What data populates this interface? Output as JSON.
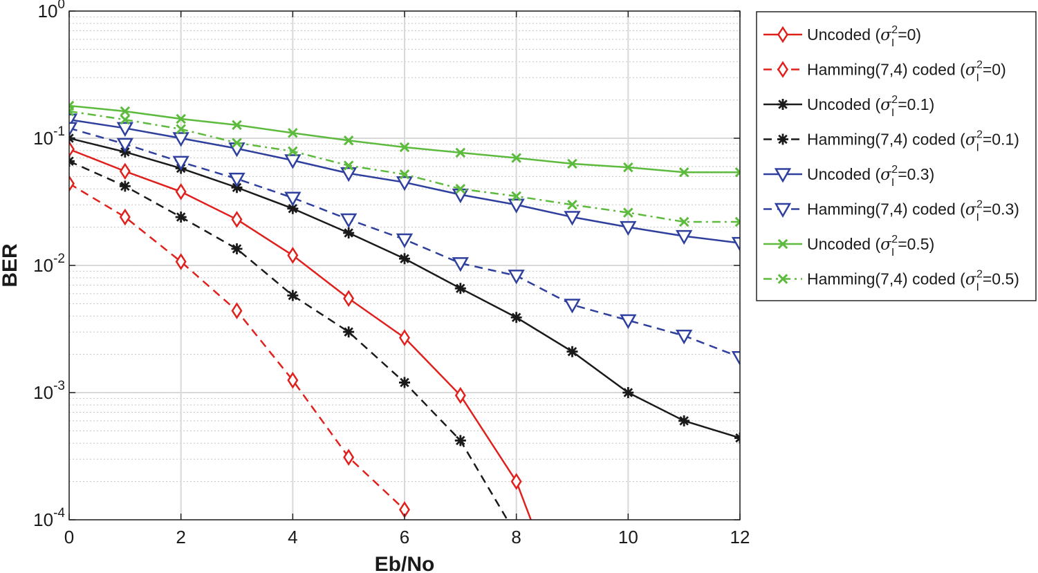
{
  "chart_data": {
    "type": "line",
    "title": "",
    "xlabel": "Eb/No",
    "ylabel": "BER",
    "xlim": [
      0,
      12
    ],
    "ylim": [
      0.0001,
      1
    ],
    "yscale": "log",
    "grid": true,
    "legend_position": "outside-right",
    "x_ticks": [
      0,
      2,
      4,
      6,
      8,
      10,
      12
    ],
    "y_ticks": [
      {
        "value": 0.0001,
        "base": "10",
        "exp": "-4"
      },
      {
        "value": 0.001,
        "base": "10",
        "exp": "-3"
      },
      {
        "value": 0.01,
        "base": "10",
        "exp": "-2"
      },
      {
        "value": 0.1,
        "base": "10",
        "exp": "-1"
      },
      {
        "value": 1,
        "base": "10",
        "exp": "0"
      }
    ],
    "series": [
      {
        "prefix": "Uncoded (",
        "value_text": "=0)",
        "color": "#e0201c",
        "dash": "solid",
        "marker": "diamond",
        "x": [
          0,
          1,
          2,
          3,
          4,
          5,
          6,
          7,
          8,
          8.3
        ],
        "y": [
          0.082,
          0.055,
          0.038,
          0.023,
          0.012,
          0.0055,
          0.0027,
          0.00095,
          0.0002,
          9e-05
        ]
      },
      {
        "prefix": "Hamming(7,4) coded (",
        "value_text": "=0)",
        "color": "#e0201c",
        "dash": "dashed",
        "marker": "diamond",
        "x": [
          0,
          1,
          2,
          3,
          4,
          5,
          6
        ],
        "y": [
          0.044,
          0.024,
          0.0107,
          0.0044,
          0.00125,
          0.00031,
          0.00012
        ]
      },
      {
        "prefix": "Uncoded (",
        "value_text": "=0.1)",
        "color": "#1a1a1a",
        "dash": "solid",
        "marker": "asterisk",
        "x": [
          0,
          1,
          2,
          3,
          4,
          5,
          6,
          7,
          8,
          9,
          10,
          11,
          12
        ],
        "y": [
          0.1,
          0.078,
          0.058,
          0.041,
          0.028,
          0.018,
          0.0113,
          0.0066,
          0.0039,
          0.0021,
          0.001,
          0.0006,
          0.00044
        ]
      },
      {
        "prefix": "Hamming(7,4) coded (",
        "value_text": "=0.1)",
        "color": "#1a1a1a",
        "dash": "dashed",
        "marker": "asterisk",
        "x": [
          0,
          1,
          2,
          3,
          4,
          5,
          6,
          7,
          7.9
        ],
        "y": [
          0.066,
          0.042,
          0.024,
          0.0135,
          0.0058,
          0.003,
          0.0012,
          0.00042,
          9e-05
        ]
      },
      {
        "prefix": "Uncoded (",
        "value_text": "=0.3)",
        "color": "#2e3f9e",
        "dash": "solid",
        "marker": "triangle-down",
        "x": [
          0,
          1,
          2,
          3,
          4,
          5,
          6,
          7,
          8,
          9,
          10,
          11,
          12
        ],
        "y": [
          0.14,
          0.12,
          0.1,
          0.083,
          0.067,
          0.053,
          0.045,
          0.036,
          0.03,
          0.024,
          0.02,
          0.017,
          0.015
        ]
      },
      {
        "prefix": "Hamming(7,4) coded (",
        "value_text": "=0.3)",
        "color": "#2e3f9e",
        "dash": "dashed",
        "marker": "triangle-down",
        "x": [
          0,
          1,
          2,
          3,
          4,
          5,
          6,
          7,
          8,
          9,
          10,
          11,
          12
        ],
        "y": [
          0.12,
          0.09,
          0.065,
          0.048,
          0.034,
          0.023,
          0.016,
          0.0104,
          0.0083,
          0.0049,
          0.0037,
          0.0028,
          0.0019
        ]
      },
      {
        "prefix": "Uncoded (",
        "value_text": "=0.5)",
        "color": "#5cba3c",
        "dash": "solid",
        "marker": "x",
        "x": [
          0,
          1,
          2,
          3,
          4,
          5,
          6,
          7,
          8,
          9,
          10,
          11,
          12
        ],
        "y": [
          0.18,
          0.163,
          0.142,
          0.127,
          0.11,
          0.096,
          0.085,
          0.077,
          0.07,
          0.063,
          0.059,
          0.054,
          0.054
        ]
      },
      {
        "prefix": "Hamming(7,4) coded (",
        "value_text": "=0.5)",
        "color": "#5cba3c",
        "dash": "dashdot",
        "marker": "x",
        "x": [
          0,
          1,
          2,
          3,
          4,
          5,
          6,
          7,
          8,
          9,
          10,
          11,
          12
        ],
        "y": [
          0.163,
          0.14,
          0.118,
          0.092,
          0.079,
          0.061,
          0.052,
          0.04,
          0.035,
          0.03,
          0.026,
          0.022,
          0.022
        ]
      }
    ]
  }
}
